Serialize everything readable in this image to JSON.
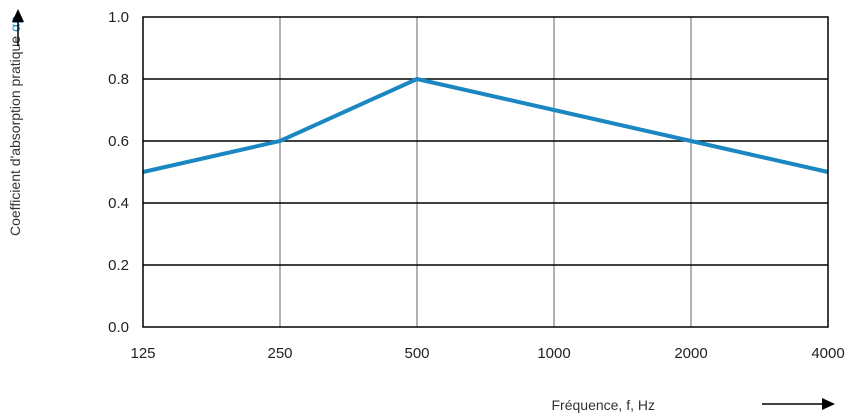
{
  "chart_data": {
    "type": "line",
    "categories": [
      "125",
      "250",
      "500",
      "1000",
      "2000",
      "4000"
    ],
    "series": [
      {
        "values": [
          0.5,
          0.6,
          0.8,
          0.7,
          0.6,
          0.5
        ],
        "color": "#1a87c2"
      }
    ],
    "yticks": [
      "0.0",
      "0.2",
      "0.4",
      "0.6",
      "0.8",
      "1.0"
    ],
    "ylim": [
      0,
      1.0
    ],
    "xlabel": "Fréquence, f, Hz",
    "ylabel": "Coefficient d'absorption pratique",
    "ylabel_symbol": "αp",
    "grid": true
  }
}
